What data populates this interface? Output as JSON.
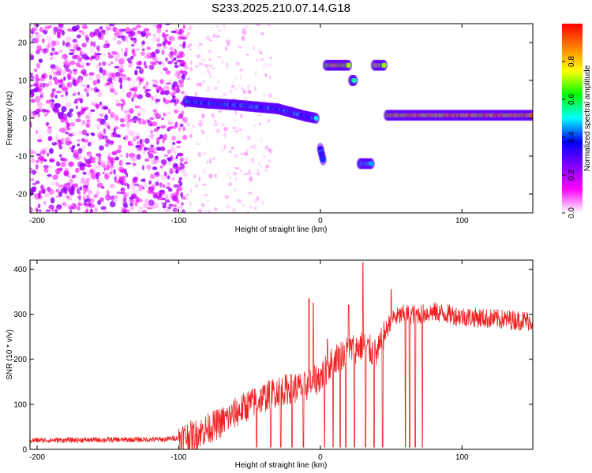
{
  "title": "S233.2025.210.07.14.G18",
  "chart_data": [
    {
      "type": "heatmap",
      "xlabel": "Height of straight line (km)",
      "ylabel": "Frequency (Hz)",
      "xlim": [
        -205,
        150
      ],
      "ylim": [
        -25,
        25
      ],
      "xticks": [
        -200,
        -100,
        0,
        100
      ],
      "yticks": [
        -20,
        -10,
        0,
        10,
        20
      ],
      "colorbar": {
        "label": "Normalized spectral amplitude",
        "range": [
          0,
          1
        ],
        "ticks": [
          0.0,
          0.2,
          0.4,
          0.6,
          0.8
        ],
        "tick_labels": [
          "0.0",
          "0.2",
          "0.4",
          "0.6",
          "0.8"
        ],
        "colormap": [
          "#ffffff",
          "#ff00ff",
          "#8000ff",
          "#0000ff",
          "#00ffff",
          "#00ff00",
          "#ffff00",
          "#ff8000",
          "#ff0000"
        ]
      },
      "noise_region": {
        "x": [
          -205,
          -95
        ],
        "y": [
          -25,
          25
        ],
        "amplitude_max": 0.25
      },
      "tracks": [
        {
          "x": [
            -95,
            -80,
            -60,
            -45,
            -30,
            -20,
            -10,
            -3
          ],
          "y": [
            4.5,
            4.0,
            3.5,
            3.0,
            2.5,
            1.5,
            0.5,
            0.0
          ],
          "amplitude": 0.5
        },
        {
          "x": [
            0,
            2
          ],
          "y": [
            -8,
            -11
          ],
          "amplitude": 0.45
        },
        {
          "x": [
            4,
            20
          ],
          "y": [
            14,
            14
          ],
          "amplitude": 0.9
        },
        {
          "x": [
            22,
            24
          ],
          "y": [
            10,
            10
          ],
          "amplitude": 0.75
        },
        {
          "x": [
            28,
            36
          ],
          "y": [
            -12,
            -12
          ],
          "amplitude": 0.55
        },
        {
          "x": [
            38,
            45
          ],
          "y": [
            14,
            14
          ],
          "amplitude": 0.85
        },
        {
          "x": [
            47,
            150
          ],
          "y": [
            0.8,
            0.8
          ],
          "amplitude": 0.95
        }
      ]
    },
    {
      "type": "line",
      "xlabel": "Height of straight line (km)",
      "ylabel": "SNR (10 * v/v)",
      "xlim": [
        -205,
        150
      ],
      "ylim": [
        0,
        420
      ],
      "xticks": [
        -200,
        -100,
        0,
        100
      ],
      "yticks": [
        0,
        100,
        200,
        300,
        400
      ],
      "color": "#ee2222",
      "envelope": {
        "x": [
          -205,
          -110,
          -90,
          -70,
          -50,
          -30,
          -10,
          0,
          10,
          20,
          30,
          40,
          46,
          50,
          60,
          70,
          80,
          100,
          120,
          150
        ],
        "y": [
          20,
          22,
          30,
          60,
          100,
          130,
          140,
          160,
          200,
          220,
          230,
          210,
          260,
          290,
          300,
          300,
          305,
          295,
          290,
          285
        ]
      },
      "peaks": [
        {
          "x": -8,
          "y": 335
        },
        {
          "x": -5,
          "y": 325
        },
        {
          "x": 5,
          "y": 245
        },
        {
          "x": 20,
          "y": 320
        },
        {
          "x": 30,
          "y": 415
        },
        {
          "x": 50,
          "y": 355
        }
      ],
      "dropouts": [
        {
          "x": -45,
          "y": 5
        },
        {
          "x": -35,
          "y": 5
        },
        {
          "x": -28,
          "y": 5
        },
        {
          "x": -20,
          "y": 5
        },
        {
          "x": -12,
          "y": 5
        },
        {
          "x": -5,
          "y": 5
        },
        {
          "x": 3,
          "y": 5
        },
        {
          "x": 9,
          "y": 5
        },
        {
          "x": 14,
          "y": 5
        },
        {
          "x": 18,
          "y": 5
        },
        {
          "x": 24,
          "y": 5
        },
        {
          "x": 32,
          "y": 5
        },
        {
          "x": 38,
          "y": 5
        },
        {
          "x": 44,
          "y": 5
        },
        {
          "x": 60,
          "y": 5
        },
        {
          "x": 63,
          "y": 5
        },
        {
          "x": 67,
          "y": 5
        },
        {
          "x": 72,
          "y": 5
        }
      ]
    }
  ]
}
